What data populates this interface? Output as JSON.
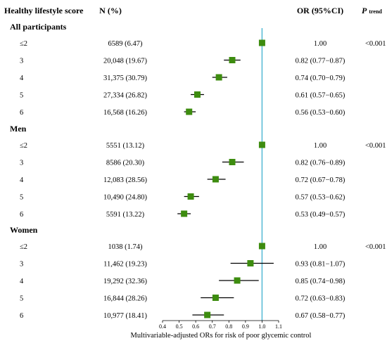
{
  "headers": {
    "score": "Healthy lifestyle score",
    "n": "N (%)",
    "or": "OR (95%CI)",
    "p_main": "P",
    "p_sub": "trend"
  },
  "chart_data": {
    "type": "forest",
    "xlabel": "Multivariable-adjusted ORs for risk of poor glycemic control",
    "xlim": [
      0.4,
      1.1
    ],
    "xticks": [
      "0.4",
      "0.5",
      "0.6",
      "0.7",
      "0.8",
      "0.9",
      "1.0",
      "1.1"
    ],
    "reference_line": 1.0,
    "colors": {
      "marker": "#3d8c0f",
      "reference": "#5bbcd6",
      "ci": "#000000"
    },
    "groups": [
      {
        "name": "All participants",
        "p_trend": "<0.001",
        "rows": [
          {
            "score": "≤2",
            "n": "6589 (6.47)",
            "or_text": "1.00",
            "or": 1.0,
            "lo": 1.0,
            "hi": 1.0
          },
          {
            "score": "3",
            "n": "20,048 (19.67)",
            "or_text": "0.82 (0.77−0.87)",
            "or": 0.82,
            "lo": 0.77,
            "hi": 0.87
          },
          {
            "score": "4",
            "n": "31,375 (30.79)",
            "or_text": "0.74 (0.70−0.79)",
            "or": 0.74,
            "lo": 0.7,
            "hi": 0.79
          },
          {
            "score": "5",
            "n": "27,334 (26.82)",
            "or_text": "0.61 (0.57−0.65)",
            "or": 0.61,
            "lo": 0.57,
            "hi": 0.65
          },
          {
            "score": "6",
            "n": "16,568 (16.26)",
            "or_text": "0.56 (0.53−0.60)",
            "or": 0.56,
            "lo": 0.53,
            "hi": 0.6
          }
        ]
      },
      {
        "name": "Men",
        "p_trend": "<0.001",
        "rows": [
          {
            "score": "≤2",
            "n": "5551 (13.12)",
            "or_text": "1.00",
            "or": 1.0,
            "lo": 1.0,
            "hi": 1.0
          },
          {
            "score": "3",
            "n": "8586 (20.30)",
            "or_text": "0.82 (0.76−0.89)",
            "or": 0.82,
            "lo": 0.76,
            "hi": 0.89
          },
          {
            "score": "4",
            "n": "12,083 (28.56)",
            "or_text": "0.72 (0.67−0.78)",
            "or": 0.72,
            "lo": 0.67,
            "hi": 0.78
          },
          {
            "score": "5",
            "n": "10,490 (24.80)",
            "or_text": "0.57 (0.53−0.62)",
            "or": 0.57,
            "lo": 0.53,
            "hi": 0.62
          },
          {
            "score": "6",
            "n": "5591 (13.22)",
            "or_text": "0.53 (0.49−0.57)",
            "or": 0.53,
            "lo": 0.49,
            "hi": 0.57
          }
        ]
      },
      {
        "name": "Women",
        "p_trend": "<0.001",
        "rows": [
          {
            "score": "≤2",
            "n": "1038 (1.74)",
            "or_text": "1.00",
            "or": 1.0,
            "lo": 1.0,
            "hi": 1.0
          },
          {
            "score": "3",
            "n": "11,462 (19.23)",
            "or_text": "0.93 (0.81−1.07)",
            "or": 0.93,
            "lo": 0.81,
            "hi": 1.07
          },
          {
            "score": "4",
            "n": "19,292 (32.36)",
            "or_text": "0.85 (0.74−0.98)",
            "or": 0.85,
            "lo": 0.74,
            "hi": 0.98
          },
          {
            "score": "5",
            "n": "16,844 (28.26)",
            "or_text": "0.72 (0.63−0.83)",
            "or": 0.72,
            "lo": 0.63,
            "hi": 0.83
          },
          {
            "score": "6",
            "n": "10,977 (18.41)",
            "or_text": "0.67 (0.58−0.77)",
            "or": 0.67,
            "lo": 0.58,
            "hi": 0.77
          }
        ]
      }
    ]
  }
}
